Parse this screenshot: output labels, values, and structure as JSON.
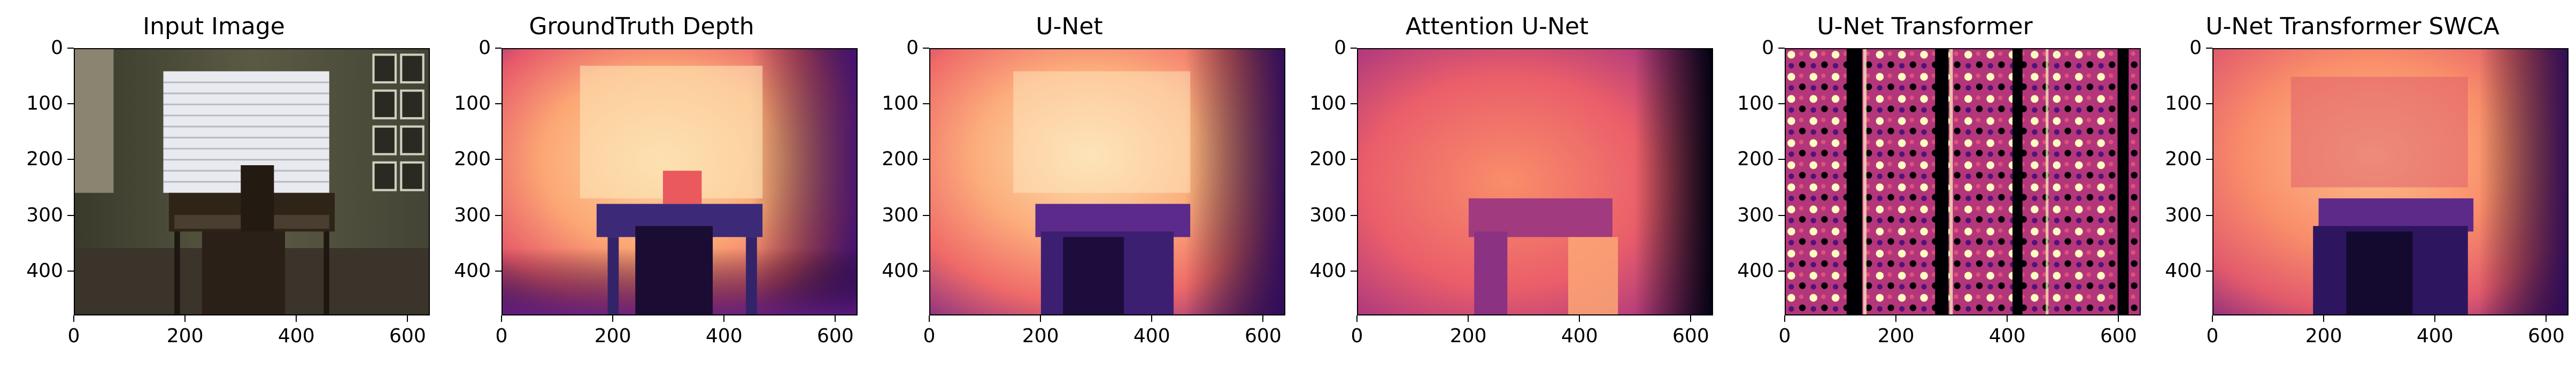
{
  "panels": [
    {
      "title": "Input Image"
    },
    {
      "title": "GroundTruth Depth"
    },
    {
      "title": "U-Net"
    },
    {
      "title": "Attention U-Net"
    },
    {
      "title": "U-Net Transformer"
    },
    {
      "title": "U-Net Transformer SWCA"
    }
  ],
  "axes": {
    "y_ticks": [
      "0",
      "100",
      "200",
      "300",
      "400"
    ],
    "x_ticks": [
      "0",
      "200",
      "400",
      "600"
    ]
  },
  "colormap": "magma"
}
